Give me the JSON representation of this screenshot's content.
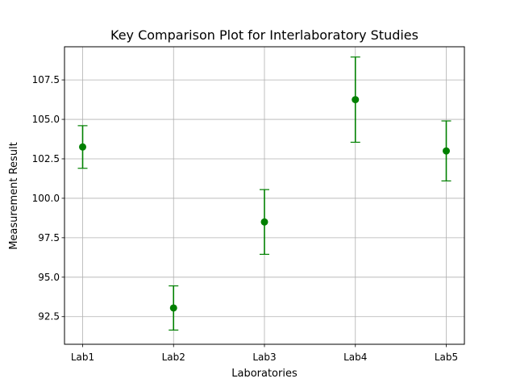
{
  "chart_data": {
    "type": "scatter",
    "title": "Key Comparison Plot for Interlaboratory Studies",
    "xlabel": "Laboratories",
    "ylabel": "Measurement Result",
    "categories": [
      "Lab1",
      "Lab2",
      "Lab3",
      "Lab4",
      "Lab5"
    ],
    "values": [
      103.25,
      93.05,
      98.5,
      106.25,
      103.0
    ],
    "errors": [
      1.35,
      1.4,
      2.05,
      2.7,
      1.9
    ],
    "ylim": [
      90.75,
      109.6
    ],
    "yticks": [
      92.5,
      95.0,
      97.5,
      100.0,
      102.5,
      105.0,
      107.5
    ],
    "ytick_labels": [
      "92.5",
      "95.0",
      "97.5",
      "100.0",
      "102.5",
      "105.0",
      "107.5"
    ],
    "grid": true,
    "color": "#008000",
    "grid_color": "#b0b0b0"
  }
}
